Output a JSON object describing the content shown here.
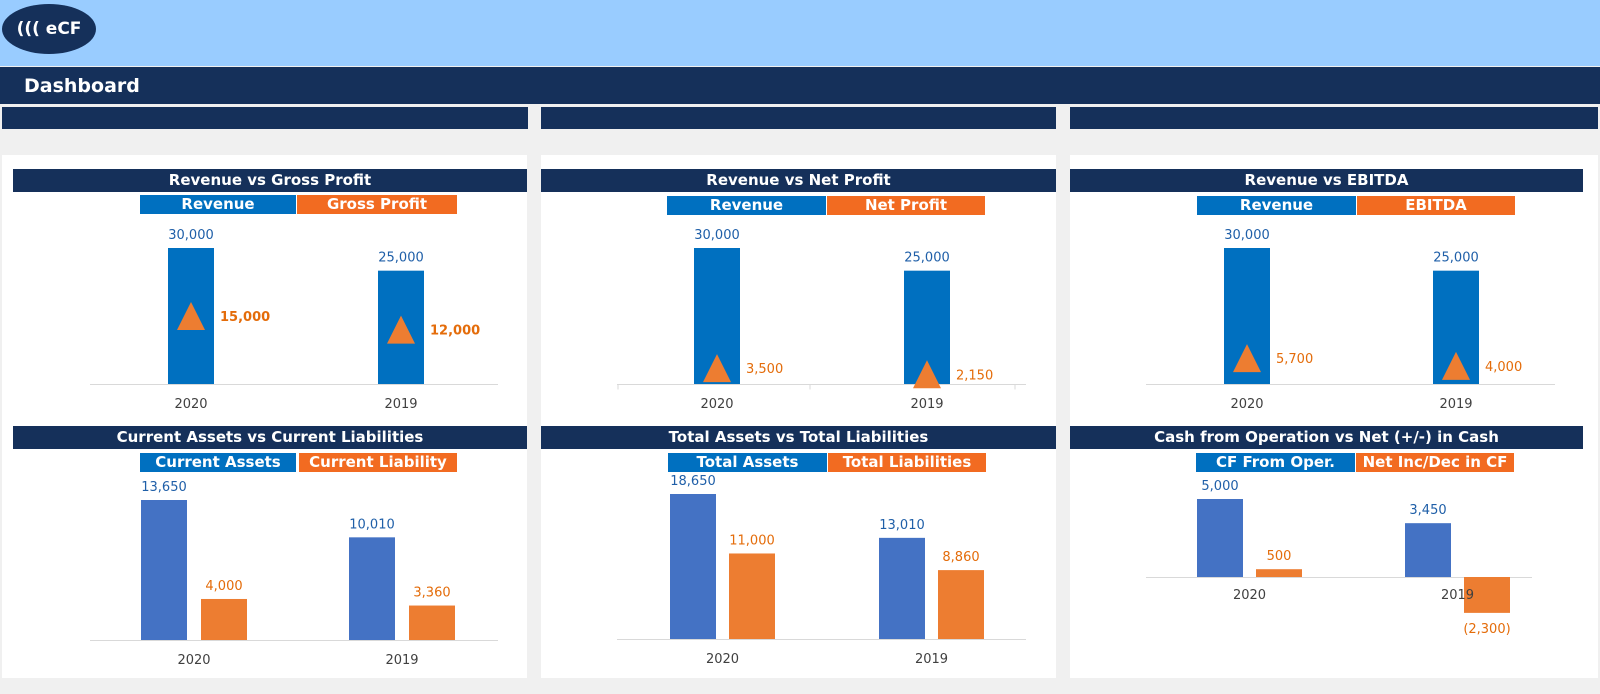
{
  "header": {
    "logo_text": "((( eCF",
    "title": "Dashboard"
  },
  "colors": {
    "navy": "#15305a",
    "sky": "#99ccff",
    "blue_bar": "#0070c0",
    "blue_bar2": "#4472c4",
    "orange": "#ed7d31",
    "legend_blue": "#0070c0",
    "legend_orange": "#f26b21"
  },
  "panels": [
    {
      "title": "Revenue vs Gross Profit",
      "legend": [
        "Revenue",
        "Gross Profit"
      ]
    },
    {
      "title": "Revenue vs Net Profit",
      "legend": [
        "Revenue",
        "Net Profit"
      ]
    },
    {
      "title": "Revenue vs EBITDA",
      "legend": [
        "Revenue",
        "EBITDA"
      ]
    },
    {
      "title": "Current Assets vs Current Liabilities",
      "legend": [
        "Current Assets",
        "Current Liability"
      ]
    },
    {
      "title": "Total Assets vs Total Liabilities",
      "legend": [
        "Total Assets",
        "Total Liabilities"
      ]
    },
    {
      "title": "Cash from Operation vs Net (+/-) in Cash",
      "legend": [
        "CF From Oper.",
        "Net Inc/Dec in CF"
      ]
    }
  ],
  "chart_data": [
    {
      "type": "bar",
      "title": "Revenue vs Gross Profit",
      "categories": [
        "2020",
        "2019"
      ],
      "ylim": [
        0,
        30000
      ],
      "series": [
        {
          "name": "Revenue",
          "values": [
            30000,
            25000
          ],
          "labels": [
            "30,000",
            "25,000"
          ]
        },
        {
          "name": "Gross Profit",
          "values": [
            15000,
            12000
          ],
          "labels": [
            "15,000",
            "12,000"
          ],
          "marker": "triangle"
        }
      ]
    },
    {
      "type": "bar",
      "title": "Revenue vs Net Profit",
      "categories": [
        "2020",
        "2019"
      ],
      "ylim": [
        0,
        30000
      ],
      "series": [
        {
          "name": "Revenue",
          "values": [
            30000,
            25000
          ],
          "labels": [
            "30,000",
            "25,000"
          ]
        },
        {
          "name": "Net Profit",
          "values": [
            3500,
            2150
          ],
          "labels": [
            "3,500",
            "2,150"
          ],
          "marker": "triangle"
        }
      ]
    },
    {
      "type": "bar",
      "title": "Revenue vs EBITDA",
      "categories": [
        "2020",
        "2019"
      ],
      "ylim": [
        0,
        30000
      ],
      "series": [
        {
          "name": "Revenue",
          "values": [
            30000,
            25000
          ],
          "labels": [
            "30,000",
            "25,000"
          ]
        },
        {
          "name": "EBITDA",
          "values": [
            5700,
            4000
          ],
          "labels": [
            "5,700",
            "4,000"
          ],
          "marker": "triangle"
        }
      ]
    },
    {
      "type": "bar",
      "title": "Current Assets vs Current Liabilities",
      "categories": [
        "2020",
        "2019"
      ],
      "ylim": [
        0,
        13650
      ],
      "series": [
        {
          "name": "Current Assets",
          "values": [
            13650,
            10010
          ],
          "labels": [
            "13,650",
            "10,010"
          ]
        },
        {
          "name": "Current Liability",
          "values": [
            4000,
            3360
          ],
          "labels": [
            "4,000",
            "3,360"
          ]
        }
      ]
    },
    {
      "type": "bar",
      "title": "Total Assets vs Total Liabilities",
      "categories": [
        "2020",
        "2019"
      ],
      "ylim": [
        0,
        18650
      ],
      "series": [
        {
          "name": "Total Assets",
          "values": [
            18650,
            13010
          ],
          "labels": [
            "18,650",
            "13,010"
          ]
        },
        {
          "name": "Total Liabilities",
          "values": [
            11000,
            8860
          ],
          "labels": [
            "11,000",
            "8,860"
          ]
        }
      ]
    },
    {
      "type": "bar",
      "title": "Cash from Operation vs Net (+/-) in Cash",
      "categories": [
        "2020",
        "2019"
      ],
      "ylim": [
        -2300,
        5000
      ],
      "series": [
        {
          "name": "CF From Oper.",
          "values": [
            5000,
            3450
          ],
          "labels": [
            "5,000",
            "3,450"
          ]
        },
        {
          "name": "Net Inc/Dec in CF",
          "values": [
            500,
            -2300
          ],
          "labels": [
            "500",
            "(2,300)"
          ]
        }
      ]
    }
  ]
}
